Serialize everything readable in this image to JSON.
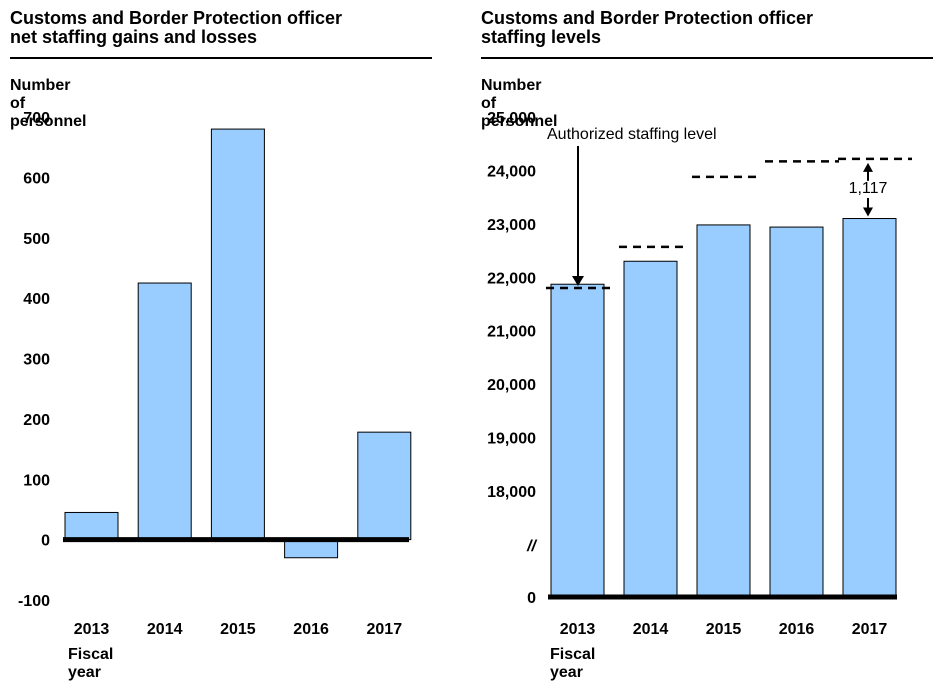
{
  "chart_data": [
    {
      "type": "bar",
      "title": "Customs and Border Protection officer\nnet staffing gains and losses",
      "ylabel": "Number of personnel",
      "xlabel": "Fiscal year",
      "categories": [
        "2013",
        "2014",
        "2015",
        "2016",
        "2017"
      ],
      "values": [
        45,
        425,
        680,
        -30,
        178
      ],
      "ylim": [
        -100,
        700
      ],
      "yticks": [
        700,
        600,
        500,
        400,
        300,
        200,
        100,
        0,
        -100
      ],
      "ytick_labels": [
        "700",
        "600",
        "500",
        "400",
        "300",
        "200",
        "100",
        "0",
        "-100"
      ],
      "bar_color": "#99ccff",
      "grid": false
    },
    {
      "type": "bar",
      "title": "Customs and Border Protection officer\nstaffing levels",
      "ylabel": "Number of personnel",
      "xlabel": "Fiscal year",
      "categories": [
        "2013",
        "2014",
        "2015",
        "2016",
        "2017"
      ],
      "values": [
        21870,
        22300,
        22980,
        22940,
        23100
      ],
      "authorized_levels": [
        21800,
        22570,
        23880,
        24170,
        24217
      ],
      "ylim": [
        0,
        25000
      ],
      "axis_break": "//",
      "yticks": [
        25000,
        24000,
        23000,
        22000,
        21000,
        20000,
        19000,
        18000,
        0
      ],
      "ytick_labels": [
        "25,000",
        "24,000",
        "23,000",
        "22,000",
        "21,000",
        "20,000",
        "19,000",
        "18,000",
        "0"
      ],
      "bar_color": "#99ccff",
      "grid": false,
      "annotations": {
        "authorized_label": "Authorized staffing level",
        "gap_label": "1,117"
      }
    }
  ]
}
